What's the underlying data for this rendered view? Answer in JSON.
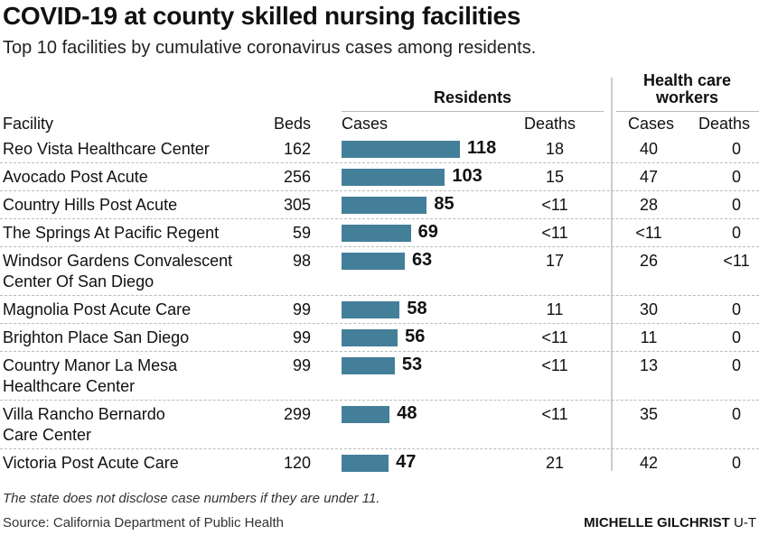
{
  "title": "COVID-19 at county skilled nursing facilities",
  "subtitle": "Top 10 facilities by cumulative coronavirus cases among residents.",
  "groups": {
    "residents": "Residents",
    "workers_line1": "Health care",
    "workers_line2": "workers"
  },
  "headers": {
    "facility": "Facility",
    "beds": "Beds",
    "res_cases": "Cases",
    "res_deaths": "Deaths",
    "hcw_cases": "Cases",
    "hcw_deaths": "Deaths"
  },
  "colors": {
    "bar": "#447f99"
  },
  "chart_data": {
    "type": "table",
    "columns": [
      "Facility",
      "Beds",
      "Residents Cases",
      "Residents Deaths",
      "Health care workers Cases",
      "Health care workers Deaths"
    ],
    "rows": [
      {
        "facility": [
          "Reo Vista Healthcare Center"
        ],
        "beds": "162",
        "cases": 118,
        "deaths": "18",
        "hcw_cases": "40",
        "hcw_deaths": "0"
      },
      {
        "facility": [
          "Avocado Post Acute"
        ],
        "beds": "256",
        "cases": 103,
        "deaths": "15",
        "hcw_cases": "47",
        "hcw_deaths": "0"
      },
      {
        "facility": [
          "Country Hills Post Acute"
        ],
        "beds": "305",
        "cases": 85,
        "deaths": "<11",
        "hcw_cases": "28",
        "hcw_deaths": "0"
      },
      {
        "facility": [
          "The Springs At Pacific Regent"
        ],
        "beds": "59",
        "cases": 69,
        "deaths": "<11",
        "hcw_cases": "<11",
        "hcw_deaths": "0"
      },
      {
        "facility": [
          "Windsor Gardens Convalescent",
          "Center Of San Diego"
        ],
        "beds": "98",
        "cases": 63,
        "deaths": "17",
        "hcw_cases": "26",
        "hcw_deaths": "<11"
      },
      {
        "facility": [
          "Magnolia Post Acute Care"
        ],
        "beds": "99",
        "cases": 58,
        "deaths": "11",
        "hcw_cases": "30",
        "hcw_deaths": "0"
      },
      {
        "facility": [
          "Brighton Place San Diego"
        ],
        "beds": "99",
        "cases": 56,
        "deaths": "<11",
        "hcw_cases": "11",
        "hcw_deaths": "0"
      },
      {
        "facility": [
          "Country Manor La Mesa",
          "Healthcare Center"
        ],
        "beds": "99",
        "cases": 53,
        "deaths": "<11",
        "hcw_cases": "13",
        "hcw_deaths": "0"
      },
      {
        "facility": [
          "Villa Rancho Bernardo",
          "Care Center"
        ],
        "beds": "299",
        "cases": 48,
        "deaths": "<11",
        "hcw_cases": "35",
        "hcw_deaths": "0"
      },
      {
        "facility": [
          "Victoria Post Acute Care"
        ],
        "beds": "120",
        "cases": 47,
        "deaths": "21",
        "hcw_cases": "42",
        "hcw_deaths": "0"
      }
    ]
  },
  "footer": {
    "note": "The state does not disclose case numbers if they are under 11.",
    "source": "Source: California Department of Public Health",
    "credit_name": "MICHELLE GILCHRIST",
    "credit_org": "U-T"
  }
}
